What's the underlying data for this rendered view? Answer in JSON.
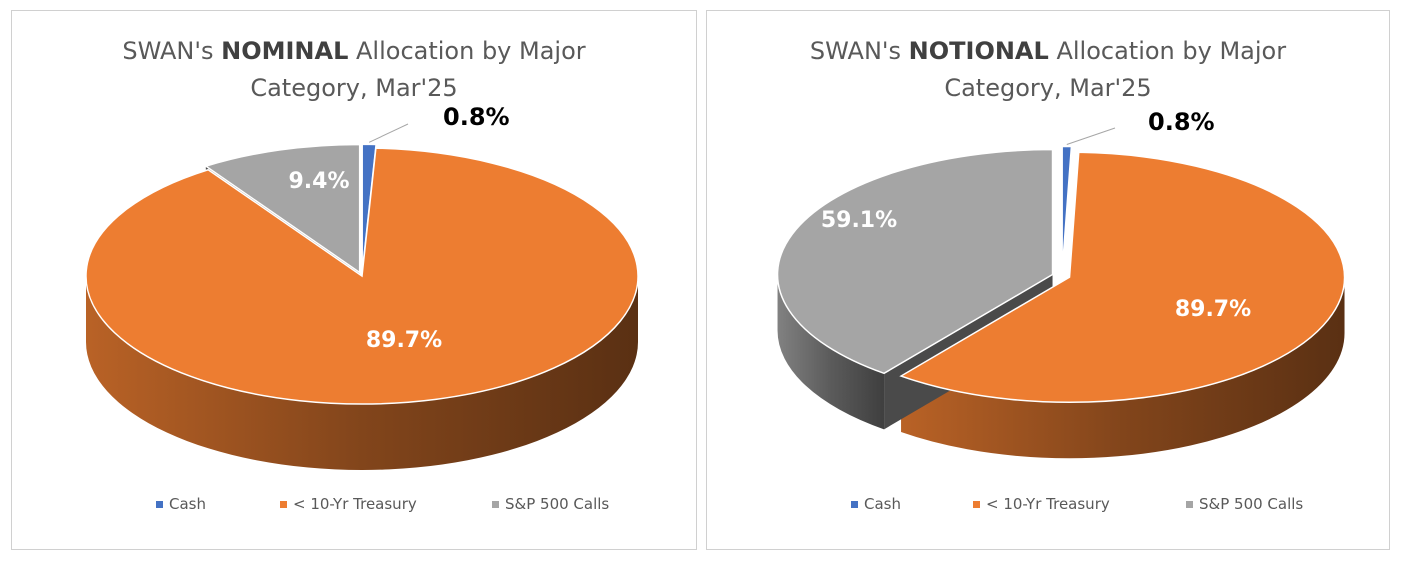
{
  "chart_data": [
    {
      "type": "pie",
      "title": {
        "pre": "SWAN's ",
        "bold": "NOMINAL",
        "post": " Allocation by Major",
        "line2": "Category, Mar'25"
      },
      "categories": [
        "Cash",
        "< 10-Yr Treasury",
        "S&P 500 Calls"
      ],
      "values": [
        0.8,
        89.7,
        9.4
      ],
      "data_labels": [
        "0.8%",
        "89.7%",
        "9.4%"
      ],
      "colors": [
        "#4472C4",
        "#ED7D31",
        "#A5A5A5"
      ],
      "legend_position": "bottom",
      "style": "3d-exploded"
    },
    {
      "type": "pie",
      "title": {
        "pre": "SWAN's ",
        "bold": "NOTIONAL",
        "post": " Allocation by Major",
        "line2": "Category, Mar'25"
      },
      "categories": [
        "Cash",
        "< 10-Yr Treasury",
        "S&P 500 Calls"
      ],
      "values": [
        0.8,
        89.7,
        59.1
      ],
      "data_labels": [
        "0.8%",
        "89.7%",
        "59.1%"
      ],
      "colors": [
        "#4472C4",
        "#ED7D31",
        "#A5A5A5"
      ],
      "legend_position": "bottom",
      "style": "3d-exploded"
    }
  ]
}
